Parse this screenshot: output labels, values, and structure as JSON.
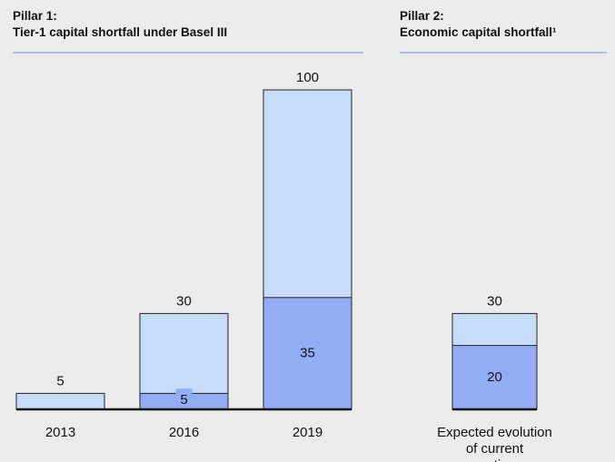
{
  "chart_data": [
    {
      "type": "bar",
      "title": "Pillar 1:",
      "subtitle": "Tier-1 capital shortfall under Basel III",
      "categories": [
        "2013",
        "2016",
        "2019"
      ],
      "series": [
        {
          "color": "#c6dcf8",
          "values": [
            5,
            30,
            100
          ]
        },
        {
          "color": "#93adf5",
          "values": [
            null,
            5,
            35
          ]
        }
      ],
      "ylim": [
        0,
        100
      ]
    },
    {
      "type": "bar",
      "title": "Pillar 2:",
      "subtitle": "Economic capital shortfall¹",
      "categories": [
        "Expected evolution of current practices"
      ],
      "series": [
        {
          "color": "#c6dcf8",
          "values": [
            30
          ]
        },
        {
          "color": "#93adf5",
          "values": [
            20
          ]
        }
      ],
      "ylim": [
        0,
        100
      ]
    }
  ]
}
